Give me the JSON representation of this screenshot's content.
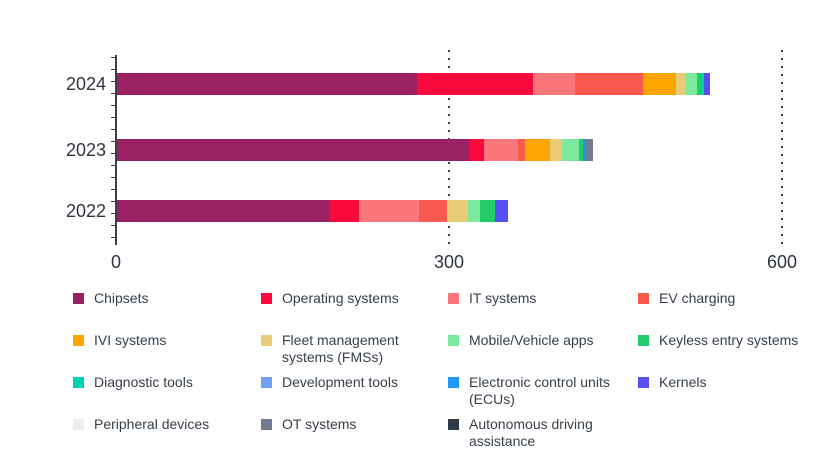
{
  "chart_data": {
    "type": "bar",
    "orientation": "horizontal-stacked",
    "title": "",
    "xlabel": "",
    "ylabel": "",
    "categories": [
      "2024",
      "2023",
      "2022"
    ],
    "xlim": [
      0,
      600
    ],
    "x_ticks": [
      "0",
      "300",
      "600"
    ],
    "gridlines": {
      "style": "dotted-vertical",
      "at": [
        300,
        600
      ]
    },
    "legend_position": "bottom-grid-4-columns",
    "series": [
      {
        "name": "Chipsets",
        "color": "#9B2164",
        "values": [
          270,
          318,
          192
        ]
      },
      {
        "name": "Operating systems",
        "color": "#FA0A3C",
        "values": [
          105,
          13,
          26
        ]
      },
      {
        "name": "IT systems",
        "color": "#FA777B",
        "values": [
          38,
          30,
          54
        ]
      },
      {
        "name": "EV charging",
        "color": "#FA5950",
        "values": [
          61,
          7,
          25
        ]
      },
      {
        "name": "IVI systems",
        "color": "#FFA502",
        "values": [
          30,
          22,
          0
        ]
      },
      {
        "name": "Fleet management systems (FMSs)",
        "color": "#E8CB74",
        "values": [
          9,
          11,
          19
        ]
      },
      {
        "name": "Mobile/Vehicle apps",
        "color": "#7DE99E",
        "values": [
          10,
          15,
          11
        ]
      },
      {
        "name": "Keyless entry systems",
        "color": "#23CC69",
        "values": [
          4,
          4,
          14
        ]
      },
      {
        "name": "Diagnostic tools",
        "color": "#00D2B5",
        "values": [
          2,
          0,
          0
        ]
      },
      {
        "name": "Development tools",
        "color": "#6FA0F5",
        "values": [
          0,
          0,
          0
        ]
      },
      {
        "name": "Electronic control units (ECUs)",
        "color": "#2096FA",
        "values": [
          0,
          2,
          0
        ]
      },
      {
        "name": "Kernels",
        "color": "#5551F0",
        "values": [
          5,
          0,
          11
        ]
      },
      {
        "name": "Peripheral devices",
        "color": "#E9EFF3",
        "values": [
          0,
          0,
          0
        ]
      },
      {
        "name": "OT systems",
        "color": "#6F7C8D",
        "values": [
          0,
          7,
          0
        ]
      },
      {
        "name": "Autonomous driving assistance",
        "color": "#2E3A45",
        "values": [
          0,
          0,
          0
        ]
      }
    ]
  },
  "axis": {
    "y_labels": [
      "2024",
      "2023",
      "2022"
    ],
    "x_labels": [
      "0",
      "300",
      "600"
    ]
  },
  "colors": {
    "text": "#37404A",
    "axis": "#37404A",
    "background": "#FFFFFF"
  }
}
